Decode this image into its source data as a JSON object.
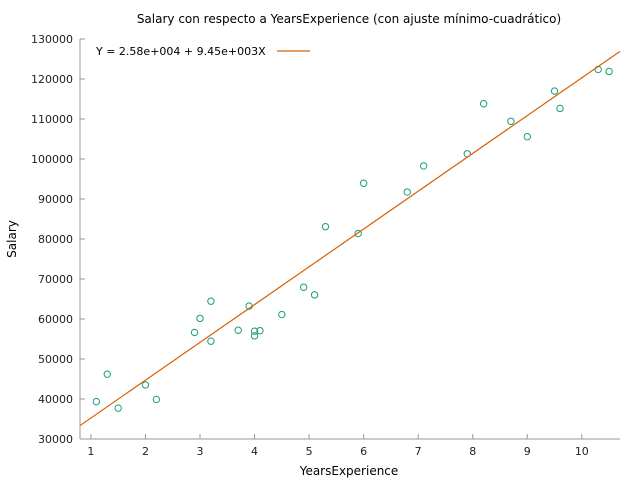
{
  "chart_data": {
    "type": "scatter",
    "title": "Salary con respecto a YearsExperience (con ajuste mínimo-cuadrático)",
    "xlabel": "YearsExperience",
    "ylabel": "Salary",
    "xlim": [
      0.8,
      10.7
    ],
    "ylim": [
      30000,
      130000
    ],
    "xticks": [
      1,
      2,
      3,
      4,
      5,
      6,
      7,
      8,
      9,
      10
    ],
    "yticks": [
      30000,
      40000,
      50000,
      60000,
      70000,
      80000,
      90000,
      100000,
      110000,
      120000,
      130000
    ],
    "grid": false,
    "legend_position": "top-left",
    "series": [
      {
        "color": "#1a9e77",
        "marker": "open-circle",
        "x": [
          1.1,
          1.3,
          1.5,
          2.0,
          2.2,
          2.9,
          3.0,
          3.2,
          3.2,
          3.7,
          3.9,
          4.0,
          4.0,
          4.1,
          4.5,
          4.9,
          5.1,
          5.3,
          5.9,
          6.0,
          6.8,
          7.1,
          7.9,
          8.2,
          8.7,
          9.0,
          9.5,
          9.6,
          10.3,
          10.5
        ],
        "y": [
          39343,
          46205,
          37731,
          43525,
          39891,
          56642,
          60150,
          54445,
          64445,
          57189,
          63218,
          55794,
          56957,
          57081,
          61111,
          67938,
          66029,
          83088,
          81363,
          93940,
          91738,
          98273,
          101302,
          113812,
          109431,
          105582,
          116969,
          112635,
          122391,
          121872
        ]
      },
      {
        "name": "Y = 2.58e+004 + 9.45e+003X",
        "type": "line",
        "color": "#d95f02",
        "intercept": 25800,
        "slope": 9450
      }
    ]
  }
}
